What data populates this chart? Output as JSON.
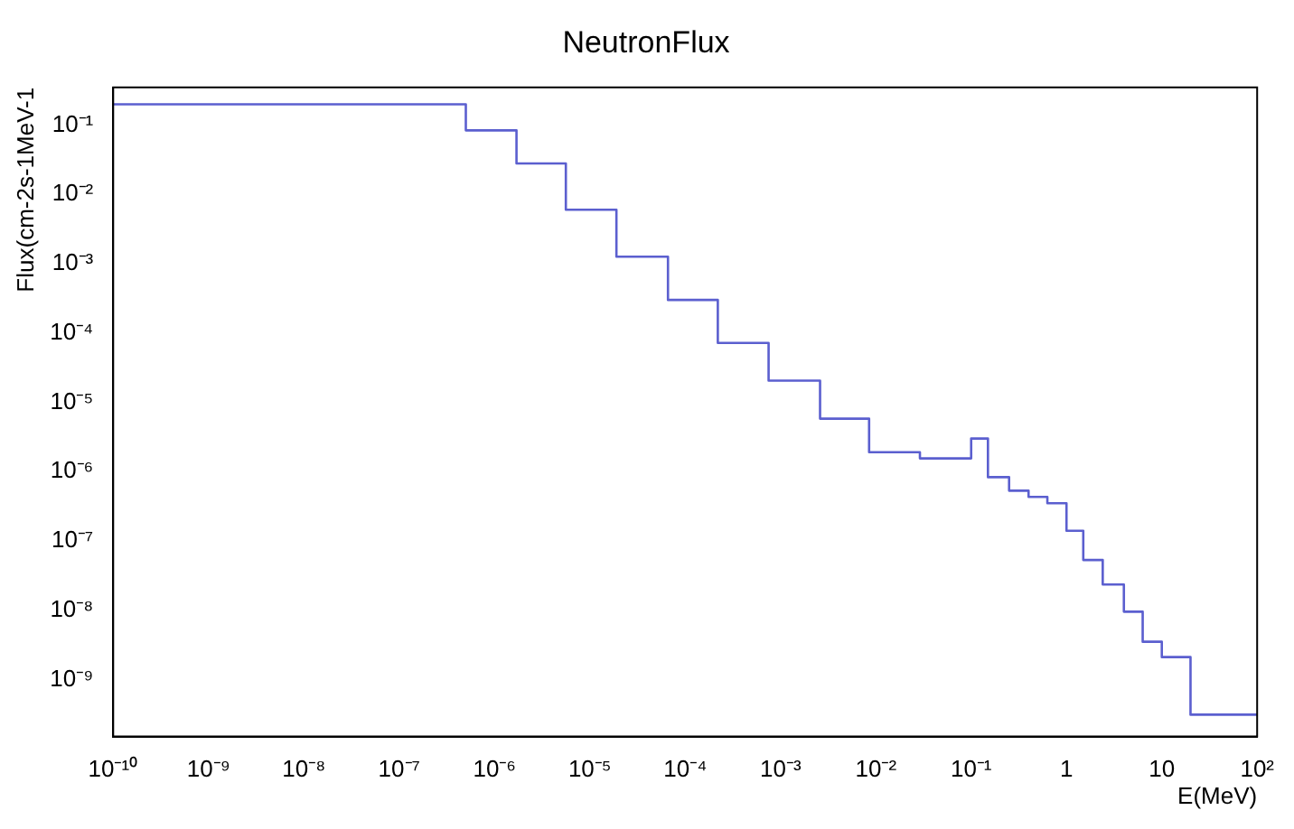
{
  "chart_data": {
    "type": "histogram",
    "title": "NeutronFlux",
    "xlabel": "E(MeV)",
    "ylabel": "Flux(cm-2s-1MeV-1",
    "bins": [
      1e-10,
      5e-07,
      1.7e-06,
      5.6e-06,
      1.9e-05,
      6.6e-05,
      0.00022,
      0.00075,
      0.0026,
      0.0085,
      0.029,
      0.1,
      0.15,
      0.25,
      0.4,
      0.63,
      1,
      1.5,
      2.4,
      4,
      6.3,
      10,
      20,
      100
    ],
    "values": [
      0.2,
      0.084,
      0.028,
      0.006,
      0.00126,
      0.0003,
      7.2e-05,
      2.05e-05,
      5.8e-06,
      1.9e-06,
      1.55e-06,
      3e-06,
      8.3e-07,
      5.3e-07,
      4.3e-07,
      3.5e-07,
      1.4e-07,
      5.3e-08,
      2.35e-08,
      9.5e-09,
      3.5e-09,
      2.1e-09,
      3.1e-10
    ],
    "color": "#5b5fcf",
    "log": "xy",
    "grid": false,
    "legend": false,
    "xlim": [
      1e-10,
      100
    ],
    "xticks": [
      {
        "value": 1e-10,
        "label": "10⁻¹⁰"
      },
      {
        "value": 1e-09,
        "label": "10⁻⁹"
      },
      {
        "value": 1e-08,
        "label": "10⁻⁸"
      },
      {
        "value": 1e-07,
        "label": "10⁻⁷"
      },
      {
        "value": 1e-06,
        "label": "10⁻⁶"
      },
      {
        "value": 1e-05,
        "label": "10⁻⁵"
      },
      {
        "value": 0.0001,
        "label": "10⁻⁴"
      },
      {
        "value": 0.001,
        "label": "10⁻³"
      },
      {
        "value": 0.01,
        "label": "10⁻²"
      },
      {
        "value": 0.1,
        "label": "10⁻¹"
      },
      1,
      10,
      {
        "value": 100,
        "label": "10²"
      }
    ],
    "ylim": [
      1.5e-10,
      0.35
    ],
    "yticks": [
      {
        "value": 1e-09,
        "label": "10⁻⁹"
      },
      {
        "value": 1e-08,
        "label": "10⁻⁸"
      },
      {
        "value": 1e-07,
        "label": "10⁻⁷"
      },
      {
        "value": 1e-06,
        "label": "10⁻⁶"
      },
      {
        "value": 1e-05,
        "label": "10⁻⁵"
      },
      {
        "value": 0.0001,
        "label": "10⁻⁴"
      },
      {
        "value": 0.001,
        "label": "10⁻³"
      },
      {
        "value": 0.01,
        "label": "10⁻²"
      },
      {
        "value": 0.1,
        "label": "10⁻¹"
      }
    ]
  }
}
